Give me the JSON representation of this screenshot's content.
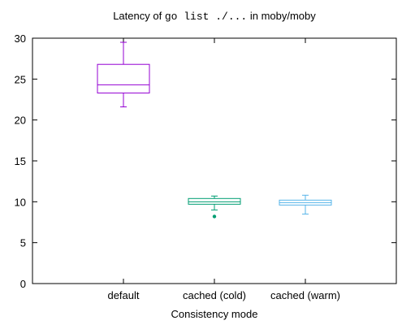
{
  "chart_data": {
    "type": "box",
    "title": {
      "prefix": "Latency of ",
      "code": "go list ./...",
      "suffix": " in moby/moby"
    },
    "xlabel": "Consistency mode",
    "ylabel": "",
    "ylim": [
      0,
      30
    ],
    "yticks": [
      0,
      5,
      10,
      15,
      20,
      25,
      30
    ],
    "grid": false,
    "legend": "none",
    "categories": [
      "default",
      "cached (cold)",
      "cached (warm)"
    ],
    "series": [
      {
        "category": "default",
        "color": "#9400d3",
        "whisker_low": 21.6,
        "q1": 23.3,
        "median": 24.3,
        "q3": 26.8,
        "whisker_high": 29.5,
        "outliers": []
      },
      {
        "category": "cached (cold)",
        "color": "#009e73",
        "whisker_low": 9.0,
        "q1": 9.7,
        "median": 10.0,
        "q3": 10.4,
        "whisker_high": 10.7,
        "outliers": [
          8.2
        ]
      },
      {
        "category": "cached (warm)",
        "color": "#56b4e9",
        "whisker_low": 8.5,
        "q1": 9.6,
        "median": 9.9,
        "q3": 10.2,
        "whisker_high": 10.8,
        "outliers": []
      }
    ]
  }
}
